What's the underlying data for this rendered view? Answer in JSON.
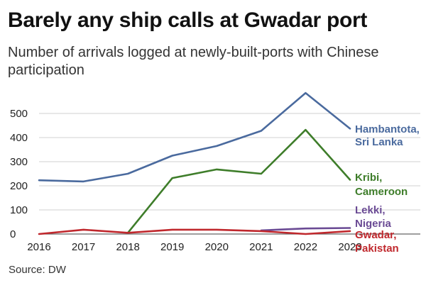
{
  "title": "Barely any ship calls at Gwadar port",
  "subtitle": "Number of arrivals logged at newly-built-ports with Chinese participation",
  "source": "Source: DW",
  "chart_data": {
    "type": "line",
    "x": [
      2016,
      2017,
      2018,
      2019,
      2020,
      2021,
      2022,
      2023
    ],
    "ylim": [
      0,
      500
    ],
    "yticks": [
      0,
      100,
      200,
      300,
      400,
      500
    ],
    "grid": true,
    "series": [
      {
        "id": "hambantota",
        "label_lines": [
          "Hambantota,",
          "Sri Lanka"
        ],
        "color": "#4a6a9e",
        "values": [
          223,
          218,
          250,
          325,
          365,
          428,
          585,
          437
        ]
      },
      {
        "id": "kribi",
        "label_lines": [
          "Kribi,",
          "Cameroon"
        ],
        "color": "#3e7d2a",
        "values": [
          null,
          null,
          5,
          232,
          268,
          250,
          432,
          225
        ]
      },
      {
        "id": "lekki",
        "label_lines": [
          "Lekki,",
          "Nigeria"
        ],
        "color": "#6a4a94",
        "values": [
          null,
          null,
          null,
          null,
          null,
          15,
          23,
          25
        ]
      },
      {
        "id": "gwadar",
        "label_lines": [
          "Gwadar,",
          "Pakistan"
        ],
        "color": "#c0282d",
        "values": [
          0,
          18,
          5,
          18,
          18,
          12,
          0,
          12
        ]
      }
    ]
  }
}
